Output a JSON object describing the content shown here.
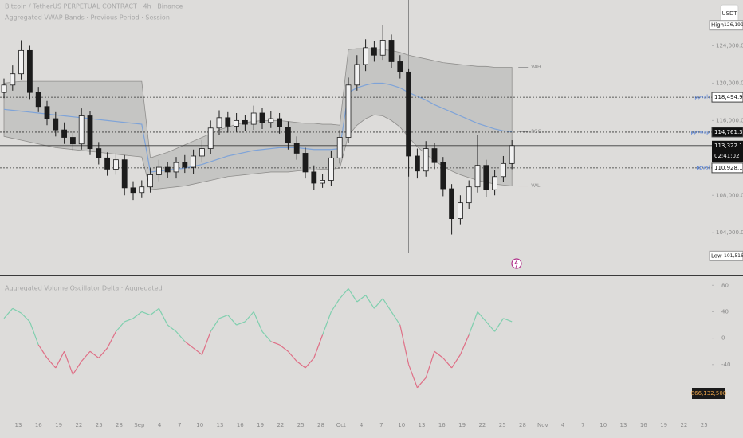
{
  "chart_data": [
    {
      "type": "candlestick",
      "title": "Bitcoin / TetherUS PERPETUAL CONTRACT · 4h · Binance",
      "subtitle": "Aggregated VWAP Bands · Previous Period · Session",
      "currency": "USDT",
      "ylim": [
        99500,
        128900
      ],
      "yticks": [
        {
          "value": 104000,
          "label": "104,000.0"
        },
        {
          "value": 108000,
          "label": "108,000.0"
        },
        {
          "value": 112000,
          "label": "112,000.0"
        },
        {
          "value": 116000,
          "label": "116,000.0"
        },
        {
          "value": 120000,
          "label": "120,000.0"
        },
        {
          "value": 124000,
          "label": "124,000.0"
        }
      ],
      "open": [
        119000,
        119800,
        121000,
        123500,
        119000,
        117500,
        116200,
        115000,
        114200,
        113500,
        116500,
        113000,
        112000,
        110800,
        111800,
        108800,
        108300,
        108900,
        110200,
        111000,
        110500,
        111500,
        111000,
        112200,
        113000,
        115200,
        116300,
        115400,
        116000,
        115600,
        116800,
        115800,
        116200,
        115300,
        113600,
        112500,
        110500,
        109300,
        109600,
        112000,
        114200,
        119800,
        122000,
        123800,
        123000,
        124600,
        122300,
        121200,
        112200,
        110600,
        113000,
        111500,
        108700,
        105500,
        107200,
        108900,
        111200,
        108600,
        110000,
        111400
      ],
      "high": [
        120500,
        121900,
        124600,
        124000,
        119600,
        118100,
        116900,
        115800,
        114900,
        117300,
        117000,
        113700,
        112600,
        112500,
        112300,
        109500,
        109600,
        110900,
        111800,
        111600,
        112100,
        112300,
        112900,
        113900,
        116000,
        117100,
        116900,
        116800,
        116600,
        117600,
        117400,
        117000,
        116800,
        115900,
        114300,
        113100,
        111200,
        110300,
        112800,
        115000,
        120600,
        123000,
        124700,
        124500,
        126199.6,
        125200,
        123000,
        121500,
        113000,
        113800,
        113600,
        112100,
        109200,
        108000,
        109600,
        114500,
        111800,
        110700,
        112200,
        113900
      ],
      "low": [
        118400,
        119200,
        120400,
        118300,
        116900,
        115500,
        114300,
        113500,
        112800,
        112900,
        112300,
        111300,
        110100,
        110200,
        108000,
        107500,
        107700,
        108300,
        109500,
        109900,
        109800,
        110400,
        110300,
        111500,
        112400,
        114500,
        114700,
        114800,
        114900,
        115000,
        115100,
        115200,
        114600,
        112900,
        111800,
        109800,
        108600,
        108800,
        109000,
        111400,
        113600,
        119200,
        121300,
        122300,
        122500,
        121600,
        120500,
        110000,
        109800,
        110000,
        110800,
        107900,
        103800,
        104900,
        106500,
        108300,
        107800,
        108000,
        109400,
        110800
      ],
      "close": [
        119800,
        121000,
        123500,
        119000,
        117500,
        116200,
        115000,
        114200,
        113500,
        116500,
        113000,
        112000,
        110800,
        111800,
        108800,
        108300,
        108900,
        110200,
        111000,
        110500,
        111500,
        111000,
        112200,
        113000,
        115200,
        116300,
        115400,
        116000,
        115600,
        116800,
        115800,
        116200,
        115300,
        113600,
        112500,
        110500,
        109300,
        109600,
        112000,
        114200,
        119800,
        122000,
        123800,
        123000,
        124600,
        122300,
        121200,
        112200,
        110600,
        113000,
        111500,
        108700,
        105500,
        107200,
        108900,
        111200,
        108600,
        110000,
        111400,
        113322.1
      ],
      "up_color": "#f2f2f2",
      "down_color": "#1c1c1c",
      "vwap": {
        "color": "#7ea3d8",
        "values": [
          117200,
          117100,
          117000,
          116900,
          116800,
          116700,
          116600,
          116500,
          116400,
          116300,
          116200,
          116100,
          116000,
          115900,
          115800,
          115700,
          115600,
          110500,
          110600,
          110700,
          110800,
          110900,
          111100,
          111300,
          111600,
          111900,
          112200,
          112400,
          112600,
          112800,
          112900,
          113000,
          113100,
          113100,
          113100,
          113000,
          112900,
          112900,
          112900,
          113000,
          119000,
          119500,
          119800,
          120000,
          120000,
          119800,
          119500,
          119000,
          118600,
          118200,
          117700,
          117300,
          116900,
          116500,
          116100,
          115700,
          115400,
          115100,
          114900,
          114800
        ]
      },
      "band": {
        "color": "#a9a8a6",
        "upper": [
          120000,
          120100,
          120200,
          120200,
          120200,
          120200,
          120200,
          120200,
          120200,
          120200,
          120200,
          120200,
          120200,
          120200,
          120200,
          120200,
          120200,
          112000,
          112300,
          112600,
          113000,
          113400,
          113800,
          114200,
          114600,
          115000,
          115300,
          115600,
          115800,
          115900,
          116000,
          116000,
          116000,
          115900,
          115800,
          115700,
          115700,
          115600,
          115600,
          115500,
          123600,
          123700,
          123700,
          123700,
          123600,
          123500,
          123300,
          123000,
          122800,
          122600,
          122400,
          122200,
          122100,
          122000,
          121900,
          121800,
          121800,
          121700,
          121700,
          121700
        ],
        "lower": [
          114300,
          114100,
          113900,
          113700,
          113500,
          113300,
          113100,
          113000,
          112900,
          112800,
          112700,
          112600,
          112500,
          112400,
          112300,
          112200,
          112100,
          108600,
          108700,
          108800,
          108900,
          109000,
          109200,
          109400,
          109600,
          109800,
          110000,
          110100,
          110200,
          110300,
          110400,
          110500,
          110500,
          110500,
          110600,
          110700,
          110700,
          110800,
          110800,
          110900,
          114400,
          115500,
          116200,
          116600,
          116500,
          116000,
          115300,
          114200,
          113200,
          112400,
          111700,
          111100,
          110600,
          110200,
          109900,
          109600,
          109400,
          109200,
          109100,
          109000
        ]
      },
      "band_labels": [
        "VAH",
        "POC",
        "VAL"
      ],
      "levels": [
        {
          "name": "High",
          "value": 126199.6,
          "value_label": "126,199.6"
        },
        {
          "name": "ppvah",
          "value": 118494.9,
          "value_label": "118,494.9"
        },
        {
          "name": "ppvwap",
          "value": 114761.3,
          "value_label": "114,761.3"
        },
        {
          "name": "ppval",
          "value": 110928.1,
          "value_label": "110,928.1"
        },
        {
          "name": "Low",
          "value": 101516.5,
          "value_label": "101,516.5"
        }
      ],
      "last_price": 113322.1,
      "last_price_label": "113,322.1",
      "countdown": "02:41:02"
    },
    {
      "type": "line",
      "title": "Aggregated Volume Oscillator Delta · Aggregated",
      "ylim": [
        -115,
        90
      ],
      "yticks": [
        -40,
        0,
        40,
        80
      ],
      "positive_color": "#7fcfae",
      "negative_color": "#df6f86",
      "values": [
        30,
        45,
        38,
        25,
        -10,
        -30,
        -45,
        -20,
        -55,
        -35,
        -20,
        -30,
        -15,
        10,
        25,
        30,
        40,
        35,
        45,
        20,
        10,
        -5,
        -15,
        -25,
        10,
        30,
        35,
        20,
        25,
        40,
        10,
        -5,
        -10,
        -20,
        -35,
        -45,
        -30,
        5,
        40,
        60,
        75,
        55,
        65,
        45,
        60,
        40,
        20,
        -40,
        -75,
        -60,
        -20,
        -30,
        -45,
        -25,
        5,
        40,
        25,
        10,
        30,
        25
      ],
      "value_badge": "866,132,508"
    },
    {
      "type": "axis",
      "categories": [
        "13",
        "16",
        "19",
        "22",
        "25",
        "28",
        "Sep",
        "4",
        "7",
        "10",
        "13",
        "16",
        "19",
        "22",
        "25",
        "28",
        "Oct",
        "4",
        "7",
        "10",
        "13",
        "16",
        "19",
        "22",
        "25",
        "28",
        "Nov",
        "4",
        "7",
        "10",
        "13",
        "16",
        "19",
        "22",
        "25"
      ]
    }
  ]
}
